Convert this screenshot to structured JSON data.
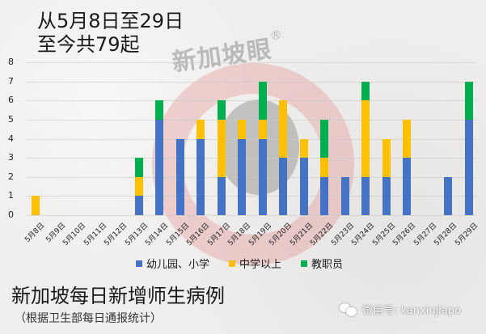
{
  "header": {
    "line1": "从5月8日至29日",
    "line2": "至今共79起"
  },
  "watermark": {
    "text": "新加坡眼",
    "reg": "®"
  },
  "footer": {
    "title": "新加坡每日新增师生病例",
    "subtitle": "（根据卫生部每日通报统计）",
    "wechat_label": "微信号: kanxinjiapo",
    "wechat_icon": "wechat-icon"
  },
  "legend": [
    {
      "label": "幼儿园、小学",
      "color": "#4472c4"
    },
    {
      "label": "中学以上",
      "color": "#ffc000"
    },
    {
      "label": "教职员",
      "color": "#00b050"
    }
  ],
  "chart_data": {
    "type": "bar",
    "stacked": true,
    "title": "新加坡每日新增师生病例",
    "subtitle": "（根据卫生部每日通报统计）",
    "annotation": "从5月8日至29日 至今共79起",
    "xlabel": "",
    "ylabel": "",
    "ylim": [
      0,
      8
    ],
    "yticks": [
      "0",
      "1",
      "2",
      "3",
      "4",
      "5",
      "6",
      "7",
      "8"
    ],
    "grid": true,
    "legend_position": "bottom",
    "categories": [
      "5月8日",
      "5月9日",
      "5月10日",
      "5月11日",
      "5月12日",
      "5月13日",
      "5月14日",
      "5月15日",
      "5月16日",
      "5月17日",
      "5月18日",
      "5月19日",
      "5月20日",
      "5月21日",
      "5月22日",
      "5月23日",
      "5月24日",
      "5月25日",
      "5月26日",
      "5月27日",
      "5月28日",
      "5月29日"
    ],
    "series": [
      {
        "name": "幼儿园、小学",
        "color": "#4472c4",
        "values": [
          0,
          0,
          0,
          0,
          0,
          1,
          5,
          4,
          4,
          2,
          4,
          4,
          3,
          3,
          2,
          2,
          2,
          2,
          3,
          0,
          2,
          5
        ]
      },
      {
        "name": "中学以上",
        "color": "#ffc000",
        "values": [
          1,
          0,
          0,
          0,
          0,
          1,
          0,
          0,
          1,
          3,
          1,
          1,
          3,
          1,
          1,
          0,
          4,
          2,
          2,
          0,
          0,
          0
        ]
      },
      {
        "name": "教职员",
        "color": "#00b050",
        "values": [
          0,
          0,
          0,
          0,
          0,
          1,
          1,
          0,
          0,
          1,
          0,
          2,
          0,
          0,
          2,
          0,
          1,
          0,
          0,
          0,
          0,
          2
        ]
      }
    ],
    "total": 79
  }
}
